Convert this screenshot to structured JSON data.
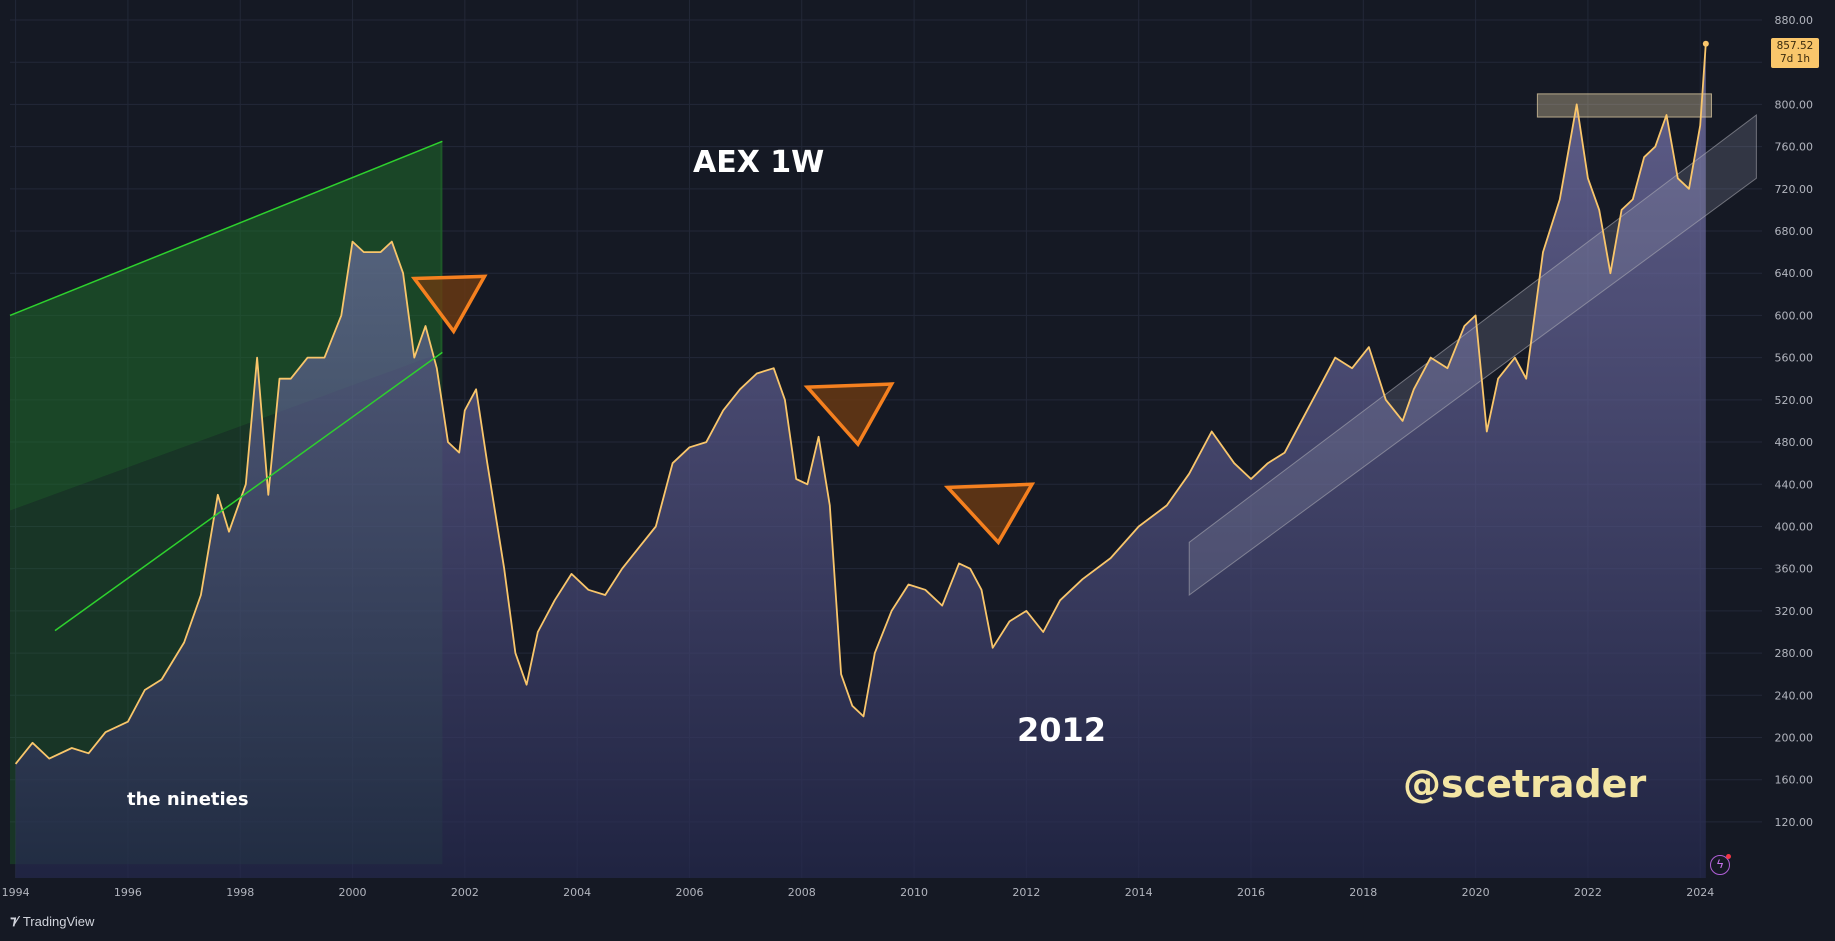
{
  "chart_data": {
    "type": "area",
    "title": "AEX 1W",
    "x_axis": {
      "tick_labels": [
        "1994",
        "1996",
        "1998",
        "2000",
        "2002",
        "2004",
        "2006",
        "2008",
        "2010",
        "2012",
        "2014",
        "2016",
        "2018",
        "2020",
        "2022",
        "2024"
      ],
      "range": [
        1993.9,
        2025.1
      ]
    },
    "y_axis": {
      "tick_labels": [
        "880.00",
        "840.00",
        "800.00",
        "760.00",
        "720.00",
        "680.00",
        "640.00",
        "600.00",
        "560.00",
        "520.00",
        "480.00",
        "440.00",
        "400.00",
        "360.00",
        "320.00",
        "280.00",
        "240.00",
        "200.00",
        "160.00",
        "120.00"
      ],
      "range": [
        100,
        880
      ],
      "position": "right"
    },
    "grid": true,
    "series": [
      {
        "color": "#f9c66b",
        "x": [
          1994.0,
          1994.3,
          1994.6,
          1995.0,
          1995.3,
          1995.6,
          1996.0,
          1996.3,
          1996.6,
          1997.0,
          1997.3,
          1997.6,
          1997.8,
          1998.1,
          1998.3,
          1998.5,
          1998.7,
          1998.9,
          1999.2,
          1999.5,
          1999.8,
          2000.0,
          2000.2,
          2000.5,
          2000.7,
          2000.9,
          2001.1,
          2001.3,
          2001.5,
          2001.7,
          2001.9,
          2002.0,
          2002.2,
          2002.4,
          2002.7,
          2002.9,
          2003.1,
          2003.3,
          2003.6,
          2003.9,
          2004.2,
          2004.5,
          2004.8,
          2005.1,
          2005.4,
          2005.7,
          2006.0,
          2006.3,
          2006.6,
          2006.9,
          2007.2,
          2007.5,
          2007.7,
          2007.9,
          2008.1,
          2008.3,
          2008.5,
          2008.7,
          2008.9,
          2009.1,
          2009.3,
          2009.6,
          2009.9,
          2010.2,
          2010.5,
          2010.8,
          2011.0,
          2011.2,
          2011.4,
          2011.7,
          2012.0,
          2012.3,
          2012.6,
          2013.0,
          2013.5,
          2014.0,
          2014.5,
          2014.9,
          2015.3,
          2015.7,
          2016.0,
          2016.3,
          2016.6,
          2016.9,
          2017.2,
          2017.5,
          2017.8,
          2018.1,
          2018.4,
          2018.7,
          2018.9,
          2019.2,
          2019.5,
          2019.8,
          2020.0,
          2020.2,
          2020.4,
          2020.7,
          2020.9,
          2021.2,
          2021.5,
          2021.8,
          2022.0,
          2022.2,
          2022.4,
          2022.6,
          2022.8,
          2023.0,
          2023.2,
          2023.4,
          2023.6,
          2023.8,
          2024.0,
          2024.1
        ],
        "values": [
          175,
          195,
          180,
          190,
          185,
          205,
          215,
          245,
          255,
          290,
          335,
          430,
          395,
          440,
          560,
          430,
          540,
          540,
          560,
          560,
          600,
          670,
          660,
          660,
          670,
          640,
          560,
          590,
          550,
          480,
          470,
          510,
          530,
          460,
          360,
          280,
          250,
          300,
          330,
          355,
          340,
          335,
          360,
          380,
          400,
          460,
          475,
          480,
          510,
          530,
          545,
          550,
          520,
          445,
          440,
          485,
          420,
          260,
          230,
          220,
          280,
          320,
          345,
          340,
          325,
          365,
          360,
          340,
          285,
          310,
          320,
          300,
          330,
          350,
          370,
          400,
          420,
          450,
          490,
          460,
          445,
          460,
          470,
          500,
          530,
          560,
          550,
          570,
          520,
          500,
          530,
          560,
          550,
          590,
          600,
          490,
          540,
          560,
          540,
          660,
          710,
          800,
          730,
          700,
          640,
          700,
          710,
          750,
          760,
          790,
          730,
          720,
          780,
          857.52
        ]
      }
    ],
    "last_value": {
      "price": "857.52",
      "countdown": "7d 1h"
    },
    "annotations": {
      "label_nineties": "the nineties",
      "label_2012": "2012",
      "watermark": "@scetrader"
    },
    "drawings": {
      "nineties_channel": {
        "color": "#2ed12e",
        "upper": [
          [
            1993.9,
            600
          ],
          [
            2001.6,
            765
          ]
        ],
        "lower": [
          [
            1993.9,
            415
          ],
          [
            2001.6,
            565
          ]
        ]
      },
      "rising_channel": {
        "color": "#b0b0b8",
        "upper": [
          [
            2014.9,
            385
          ],
          [
            2025.0,
            790
          ]
        ],
        "lower": [
          [
            2014.9,
            335
          ],
          [
            2025.0,
            730
          ]
        ]
      },
      "resistance_zone": {
        "color": "#e8d4a8",
        "x": [
          2021.1,
          2024.2
        ],
        "y": [
          788,
          810
        ]
      },
      "triangles": [
        {
          "color": "#f5801f",
          "points": [
            [
              2001.1,
              635
            ],
            [
              2002.35,
              637
            ],
            [
              2001.8,
              585
            ]
          ]
        },
        {
          "color": "#f5801f",
          "points": [
            [
              2008.1,
              532
            ],
            [
              2009.6,
              535
            ],
            [
              2009.0,
              478
            ]
          ]
        },
        {
          "color": "#f5801f",
          "points": [
            [
              2010.6,
              437
            ],
            [
              2012.1,
              440
            ],
            [
              2011.5,
              385
            ]
          ]
        }
      ]
    }
  },
  "branding": {
    "logo_mark": "⁊⁄",
    "name": "TradingView"
  },
  "price_tag": {
    "price": "857.52",
    "countdown": "7d 1h"
  }
}
